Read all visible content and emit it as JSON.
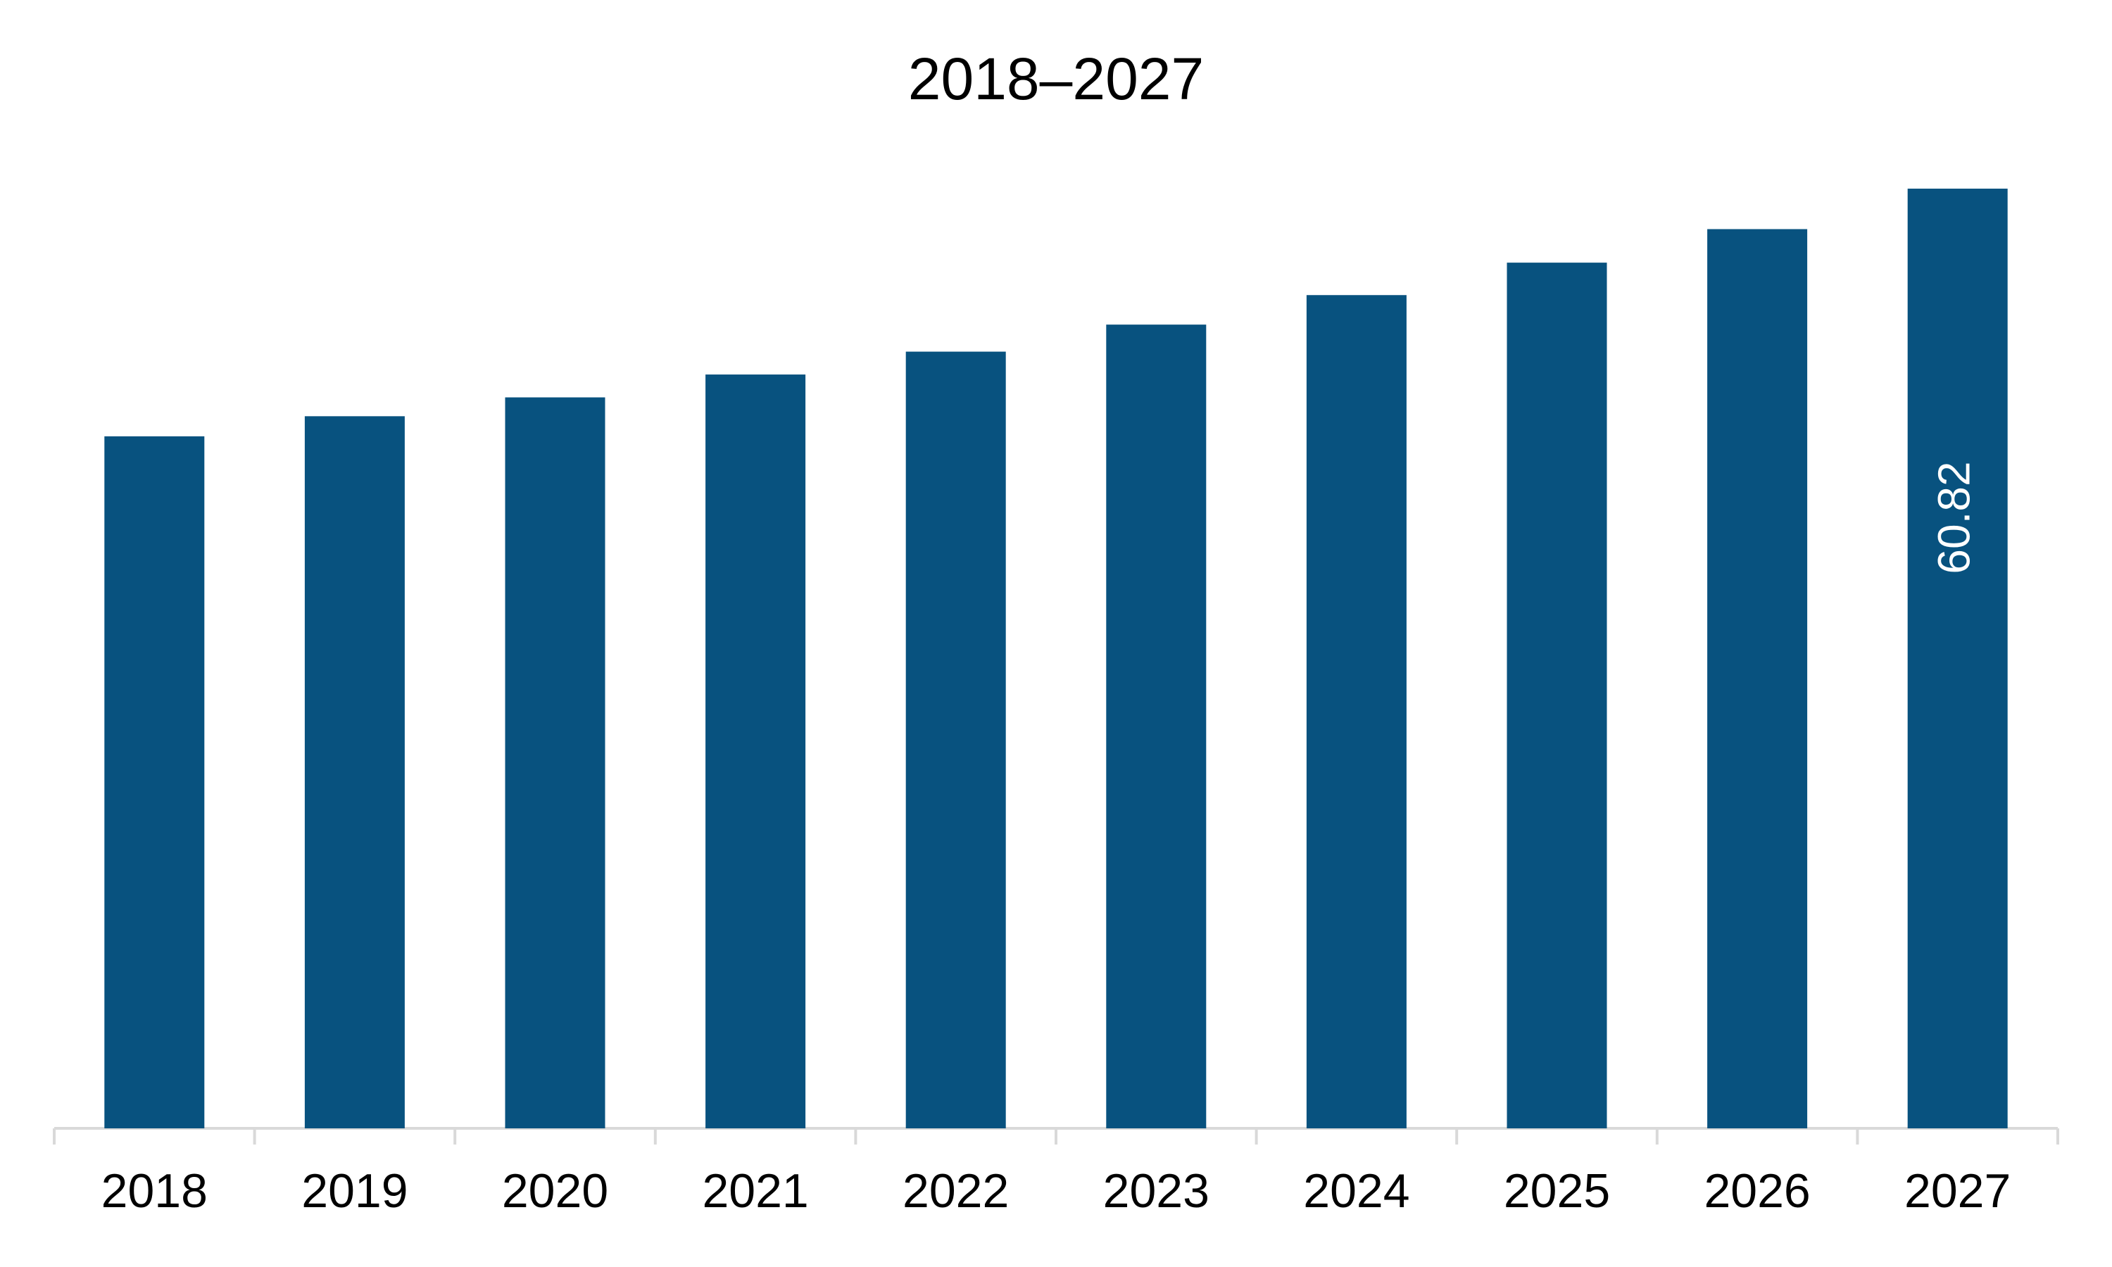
{
  "chart_data": {
    "type": "bar",
    "title": "2018–2027",
    "categories": [
      "2018",
      "2019",
      "2020",
      "2021",
      "2022",
      "2023",
      "2024",
      "2025",
      "2026",
      "2027"
    ],
    "values": [
      44.79,
      46.09,
      47.31,
      48.79,
      50.27,
      52.02,
      53.93,
      56.03,
      58.2,
      60.82
    ],
    "value_labels": [
      null,
      null,
      null,
      null,
      null,
      null,
      null,
      null,
      null,
      "60.82"
    ],
    "color": "#08527f"
  }
}
